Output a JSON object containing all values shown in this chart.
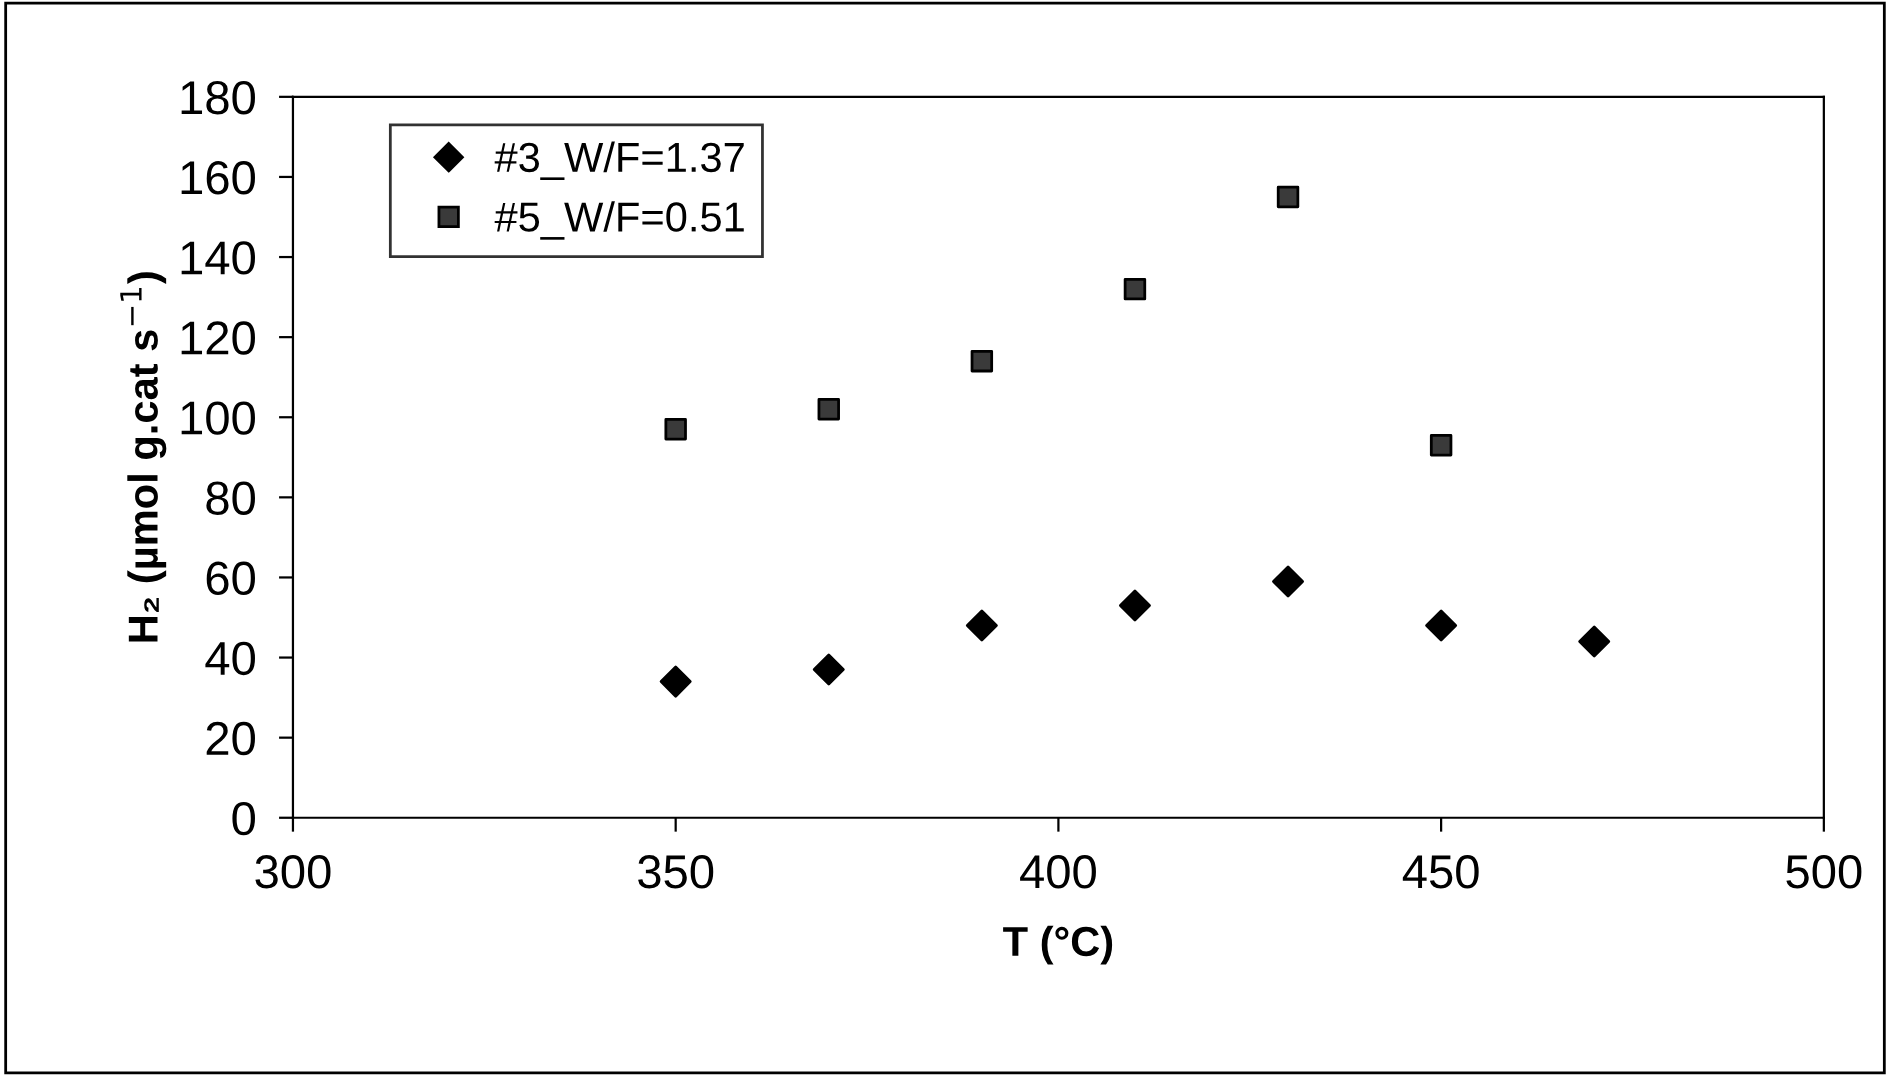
{
  "chart_data": {
    "type": "scatter",
    "xlabel": "T (°C)",
    "ylabel": "H₂ (µmol g.cat s$^{−1}$)",
    "x": [
      350,
      370,
      390,
      410,
      430,
      450,
      470
    ],
    "series": [
      {
        "name": "#3_W/F=1.37",
        "color": "#000000",
        "marker": "diamond",
        "values": [
          34,
          37,
          48,
          53,
          59,
          48,
          44
        ]
      },
      {
        "name": "#5_W/F=0.51",
        "color": "#3a3a3a",
        "marker": "square",
        "values": [
          97,
          102,
          114,
          132,
          155,
          93,
          null
        ]
      }
    ],
    "xlim": [
      300,
      500
    ],
    "xticks": [
      300,
      350,
      400,
      450,
      500
    ],
    "ylim": [
      0,
      180
    ],
    "yticks": [
      0,
      20,
      40,
      60,
      80,
      100,
      120,
      140,
      160,
      180
    ],
    "grid": false,
    "legend": "top left"
  }
}
